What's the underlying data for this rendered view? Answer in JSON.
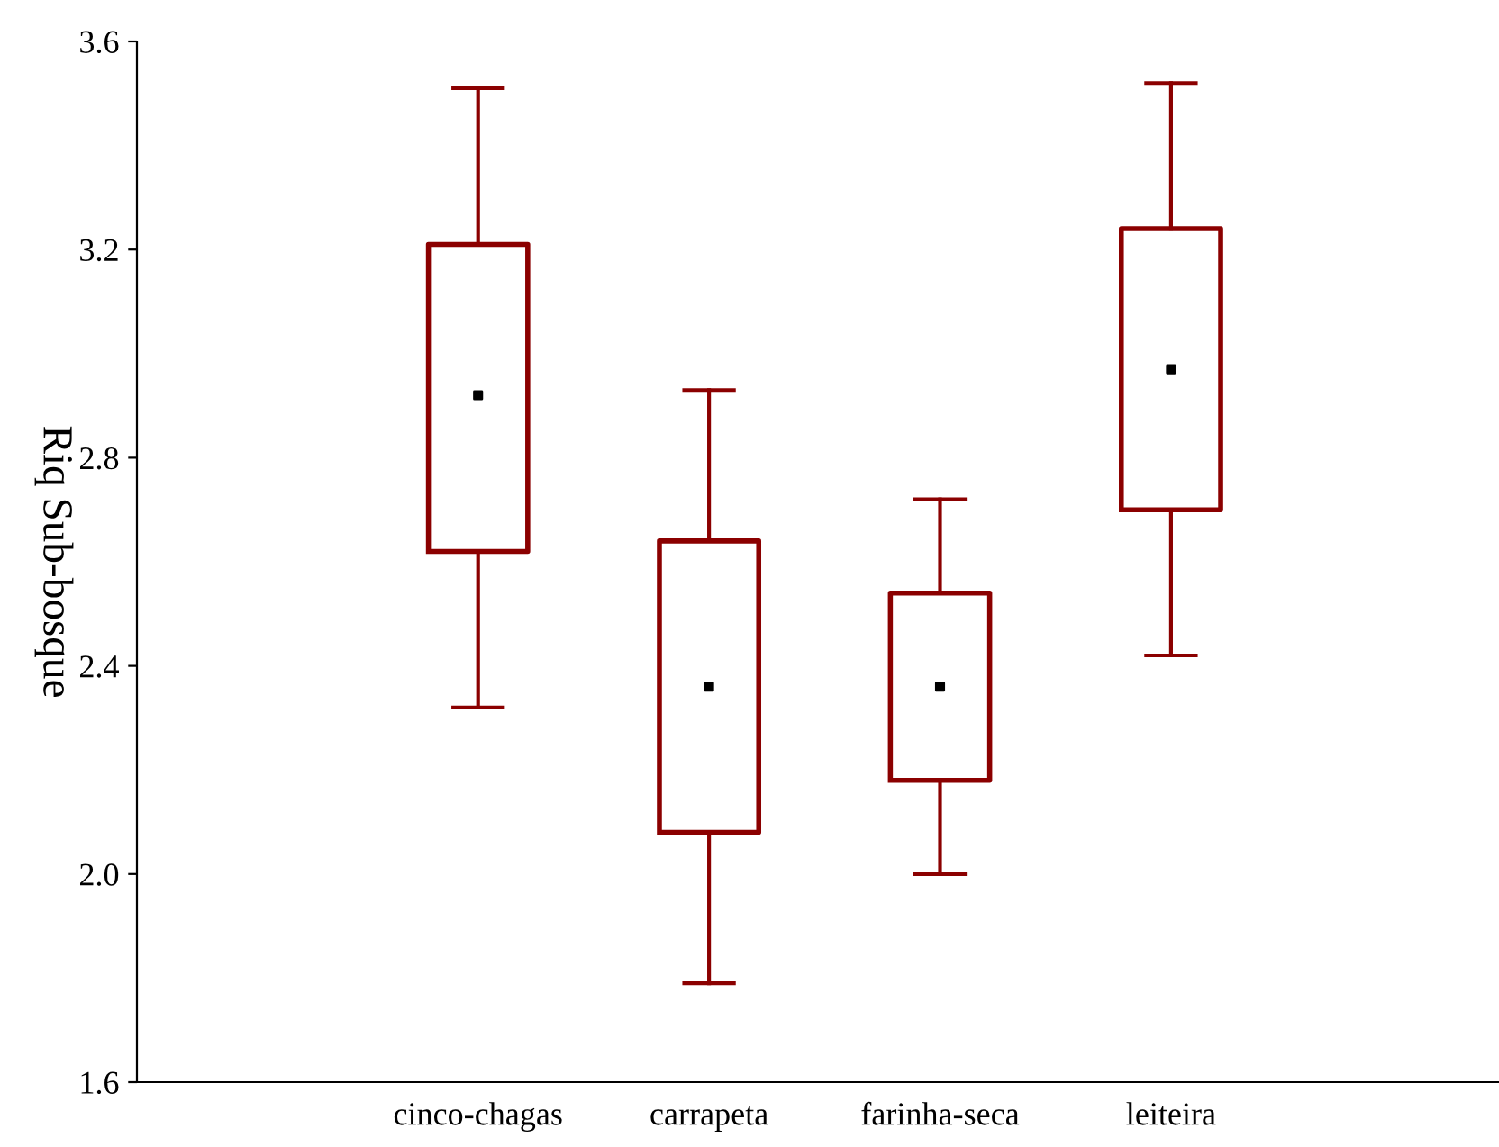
{
  "chart_data": {
    "type": "box",
    "ylabel": "Riq Sub-bosque",
    "categories": [
      "cinco-chagas",
      "carrapeta",
      "farinha-seca",
      "leiteira"
    ],
    "color": "#8b0000",
    "boxes": [
      {
        "low": 2.32,
        "q1": 2.62,
        "median": 2.92,
        "q3": 3.21,
        "high": 3.51
      },
      {
        "low": 1.79,
        "q1": 2.08,
        "median": 2.36,
        "q3": 2.64,
        "high": 2.93
      },
      {
        "low": 2.0,
        "q1": 2.18,
        "median": 2.36,
        "q3": 2.54,
        "high": 2.72
      },
      {
        "low": 2.42,
        "q1": 2.7,
        "median": 2.97,
        "q3": 3.24,
        "high": 3.52
      }
    ],
    "ylim": [
      1.6,
      3.6
    ],
    "yticks": [
      {
        "value": 1.6,
        "label": "1.6"
      },
      {
        "value": 2.0,
        "label": "2.0"
      },
      {
        "value": 2.4,
        "label": "2.4"
      },
      {
        "value": 2.8,
        "label": "2.8"
      },
      {
        "value": 3.2,
        "label": "3.2"
      },
      {
        "value": 3.6,
        "label": "3.6"
      }
    ],
    "grid": false,
    "legend": false
  }
}
